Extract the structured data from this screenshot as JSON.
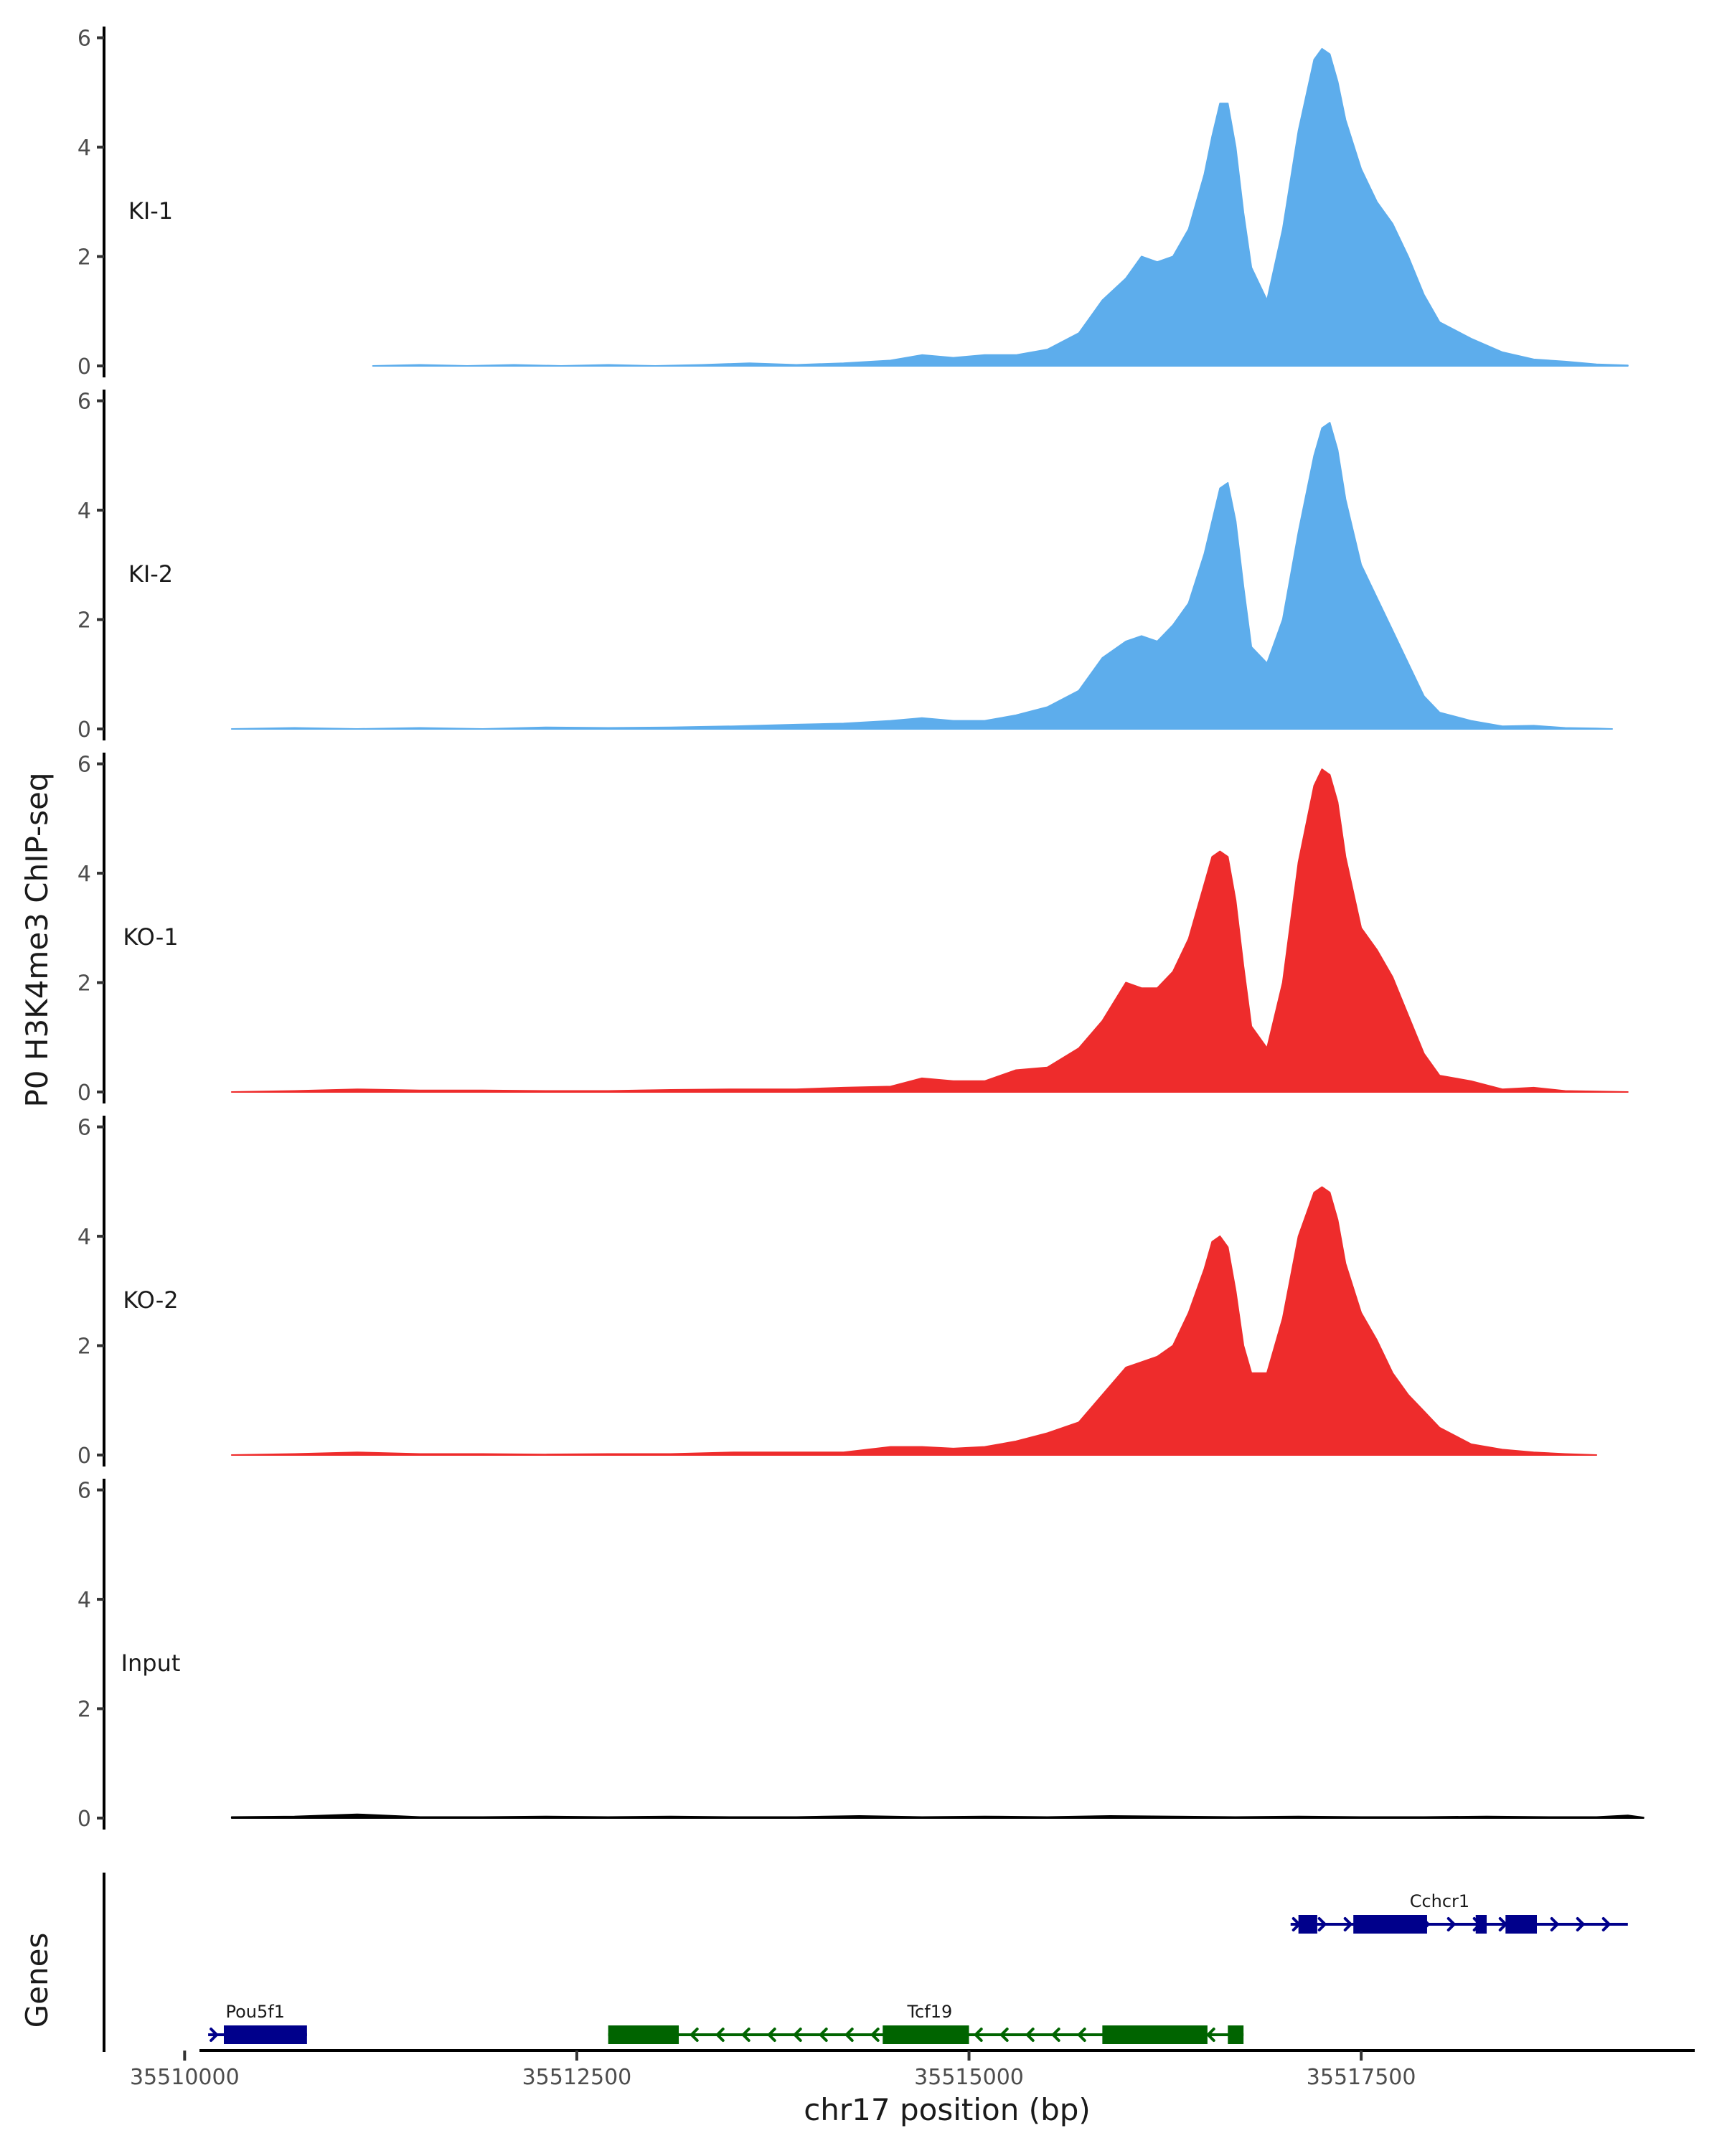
{
  "chart_data": {
    "type": "area",
    "ylabel": "P0 H3K4me3 ChIP-seq",
    "xlabel": "chr17 position (bp)",
    "genes_label": "Genes",
    "xlim": [
      35509500,
      35519800
    ],
    "ylim": [
      0,
      6.1
    ],
    "y_ticks": [
      0,
      2,
      4,
      6
    ],
    "x_ticks": [
      35510000,
      35512500,
      35515000,
      35517500
    ],
    "colors": {
      "KI": "#5dadec",
      "KO": "#ee2c2c",
      "Input": "#000000",
      "gene_plus": "#00008b",
      "gene_minus": "#006400"
    },
    "series": [
      {
        "name": "KI-1",
        "color": "#5dadec",
        "x_start": 35511200,
        "x_end": 35519200,
        "x": [
          35511200,
          35511500,
          35511800,
          35512100,
          35512400,
          35512700,
          35513000,
          35513300,
          35513600,
          35513900,
          35514200,
          35514500,
          35514700,
          35514900,
          35515100,
          35515300,
          35515500,
          35515700,
          35515850,
          35516000,
          35516100,
          35516200,
          35516300,
          35516400,
          35516500,
          35516550,
          35516600,
          35516650,
          35516700,
          35516750,
          35516800,
          35516900,
          35517000,
          35517100,
          35517200,
          35517250,
          35517300,
          35517350,
          35517400,
          35517500,
          35517600,
          35517700,
          35517800,
          35517900,
          35518000,
          35518200,
          35518400,
          35518600,
          35518800,
          35519000,
          35519200
        ],
        "values": [
          0,
          0.02,
          0,
          0.02,
          0,
          0.02,
          0,
          0.02,
          0.05,
          0.02,
          0.05,
          0.1,
          0.2,
          0.15,
          0.2,
          0.2,
          0.3,
          0.6,
          1.2,
          1.6,
          2.0,
          1.9,
          2.0,
          2.5,
          3.5,
          4.2,
          4.8,
          4.8,
          4.0,
          2.8,
          1.8,
          1.2,
          2.5,
          4.3,
          5.6,
          5.8,
          5.7,
          5.2,
          4.5,
          3.6,
          3.0,
          2.6,
          2.0,
          1.3,
          0.8,
          0.5,
          0.25,
          0.12,
          0.08,
          0.03,
          0.01
        ]
      },
      {
        "name": "KI-2",
        "color": "#5dadec",
        "x_start": 35510300,
        "x_end": 35519100,
        "x": [
          35510300,
          35510700,
          35511100,
          35511500,
          35511900,
          35512300,
          35512700,
          35513100,
          35513500,
          35513900,
          35514200,
          35514500,
          35514700,
          35514900,
          35515100,
          35515300,
          35515500,
          35515700,
          35515850,
          35516000,
          35516100,
          35516200,
          35516300,
          35516400,
          35516500,
          35516550,
          35516600,
          35516650,
          35516700,
          35516750,
          35516800,
          35516900,
          35517000,
          35517100,
          35517200,
          35517250,
          35517300,
          35517350,
          35517400,
          35517500,
          35517600,
          35517700,
          35517800,
          35517900,
          35518000,
          35518200,
          35518400,
          35518600,
          35518800,
          35519000,
          35519100
        ],
        "values": [
          0,
          0.02,
          0,
          0.02,
          0,
          0.03,
          0.02,
          0.03,
          0.05,
          0.08,
          0.1,
          0.15,
          0.2,
          0.15,
          0.15,
          0.25,
          0.4,
          0.7,
          1.3,
          1.6,
          1.7,
          1.6,
          1.9,
          2.3,
          3.2,
          3.8,
          4.4,
          4.5,
          3.8,
          2.6,
          1.5,
          1.2,
          2.0,
          3.6,
          5.0,
          5.5,
          5.6,
          5.1,
          4.2,
          3.0,
          2.4,
          1.8,
          1.2,
          0.6,
          0.3,
          0.15,
          0.05,
          0.06,
          0.02,
          0.01,
          0
        ]
      },
      {
        "name": "KO-1",
        "color": "#ee2c2c",
        "x_start": 35510300,
        "x_end": 35519200,
        "x": [
          35510300,
          35510700,
          35511100,
          35511500,
          35511900,
          35512300,
          35512700,
          35513100,
          35513500,
          35513900,
          35514200,
          35514500,
          35514700,
          35514900,
          35515100,
          35515300,
          35515500,
          35515700,
          35515850,
          35516000,
          35516100,
          35516200,
          35516300,
          35516400,
          35516500,
          35516550,
          35516600,
          35516650,
          35516700,
          35516750,
          35516800,
          35516900,
          35517000,
          35517100,
          35517200,
          35517250,
          35517300,
          35517350,
          35517400,
          35517500,
          35517600,
          35517700,
          35517800,
          35517900,
          35518000,
          35518200,
          35518400,
          35518600,
          35518800,
          35519000,
          35519200
        ],
        "values": [
          0,
          0.02,
          0.05,
          0.03,
          0.03,
          0.02,
          0.02,
          0.04,
          0.05,
          0.05,
          0.08,
          0.1,
          0.25,
          0.2,
          0.2,
          0.4,
          0.45,
          0.8,
          1.3,
          2.0,
          1.9,
          1.9,
          2.2,
          2.8,
          3.8,
          4.3,
          4.4,
          4.3,
          3.5,
          2.3,
          1.2,
          0.8,
          2.0,
          4.2,
          5.6,
          5.9,
          5.8,
          5.3,
          4.3,
          3.0,
          2.6,
          2.1,
          1.4,
          0.7,
          0.3,
          0.2,
          0.05,
          0.08,
          0.02,
          0.01,
          0
        ]
      },
      {
        "name": "KO-2",
        "color": "#ee2c2c",
        "x_start": 35510300,
        "x_end": 35519000,
        "x": [
          35510300,
          35510700,
          35511100,
          35511500,
          35511900,
          35512300,
          35512700,
          35513100,
          35513500,
          35513900,
          35514200,
          35514500,
          35514700,
          35514900,
          35515100,
          35515300,
          35515500,
          35515700,
          35515850,
          35516000,
          35516100,
          35516200,
          35516300,
          35516400,
          35516500,
          35516550,
          35516600,
          35516650,
          35516700,
          35516750,
          35516800,
          35516900,
          35517000,
          35517100,
          35517200,
          35517250,
          35517300,
          35517350,
          35517400,
          35517500,
          35517600,
          35517700,
          35517800,
          35517900,
          35518000,
          35518200,
          35518400,
          35518600,
          35518800,
          35519000
        ],
        "values": [
          0,
          0.02,
          0.05,
          0.02,
          0.02,
          0.01,
          0.02,
          0.02,
          0.05,
          0.05,
          0.05,
          0.15,
          0.15,
          0.12,
          0.15,
          0.25,
          0.4,
          0.6,
          1.1,
          1.6,
          1.7,
          1.8,
          2.0,
          2.6,
          3.4,
          3.9,
          4.0,
          3.8,
          3.0,
          2.0,
          1.5,
          1.5,
          2.5,
          4.0,
          4.8,
          4.9,
          4.8,
          4.3,
          3.5,
          2.6,
          2.1,
          1.5,
          1.1,
          0.8,
          0.5,
          0.2,
          0.1,
          0.05,
          0.02,
          0
        ]
      },
      {
        "name": "Input",
        "color": "#000000",
        "x_start": 35510300,
        "x_end": 35519300,
        "x": [
          35510300,
          35510700,
          35511100,
          35511500,
          35511900,
          35512300,
          35512700,
          35513100,
          35513500,
          35513900,
          35514300,
          35514700,
          35515100,
          35515500,
          35515900,
          35516300,
          35516700,
          35517100,
          35517500,
          35517900,
          35518300,
          35518700,
          35519000,
          35519200,
          35519300
        ],
        "values": [
          0.02,
          0.03,
          0.07,
          0.02,
          0.02,
          0.03,
          0.02,
          0.03,
          0.02,
          0.02,
          0.04,
          0.02,
          0.03,
          0.02,
          0.04,
          0.03,
          0.02,
          0.03,
          0.02,
          0.02,
          0.03,
          0.02,
          0.02,
          0.05,
          0.01
        ]
      }
    ],
    "genes": [
      {
        "name": "Pou5f1",
        "strand": "+",
        "row": "lower",
        "color": "#00008b",
        "tx_start": 35510150,
        "tx_end": 35510780,
        "exons": [
          [
            35510250,
            35510780
          ]
        ]
      },
      {
        "name": "Tcf19",
        "strand": "-",
        "row": "lower",
        "color": "#006400",
        "tx_start": 35512700,
        "tx_end": 35516750,
        "exons": [
          [
            35512700,
            35513150
          ],
          [
            35514450,
            35515000
          ],
          [
            35515850,
            35516520
          ],
          [
            35516650,
            35516750
          ]
        ]
      },
      {
        "name": "Cchcr1",
        "strand": "+",
        "row": "upper",
        "color": "#00008b",
        "tx_start": 35517050,
        "tx_end": 35519200,
        "exons": [
          [
            35517100,
            35517220
          ],
          [
            35517450,
            35517920
          ],
          [
            35518230,
            35518300
          ],
          [
            35518420,
            35518620
          ]
        ]
      }
    ]
  }
}
